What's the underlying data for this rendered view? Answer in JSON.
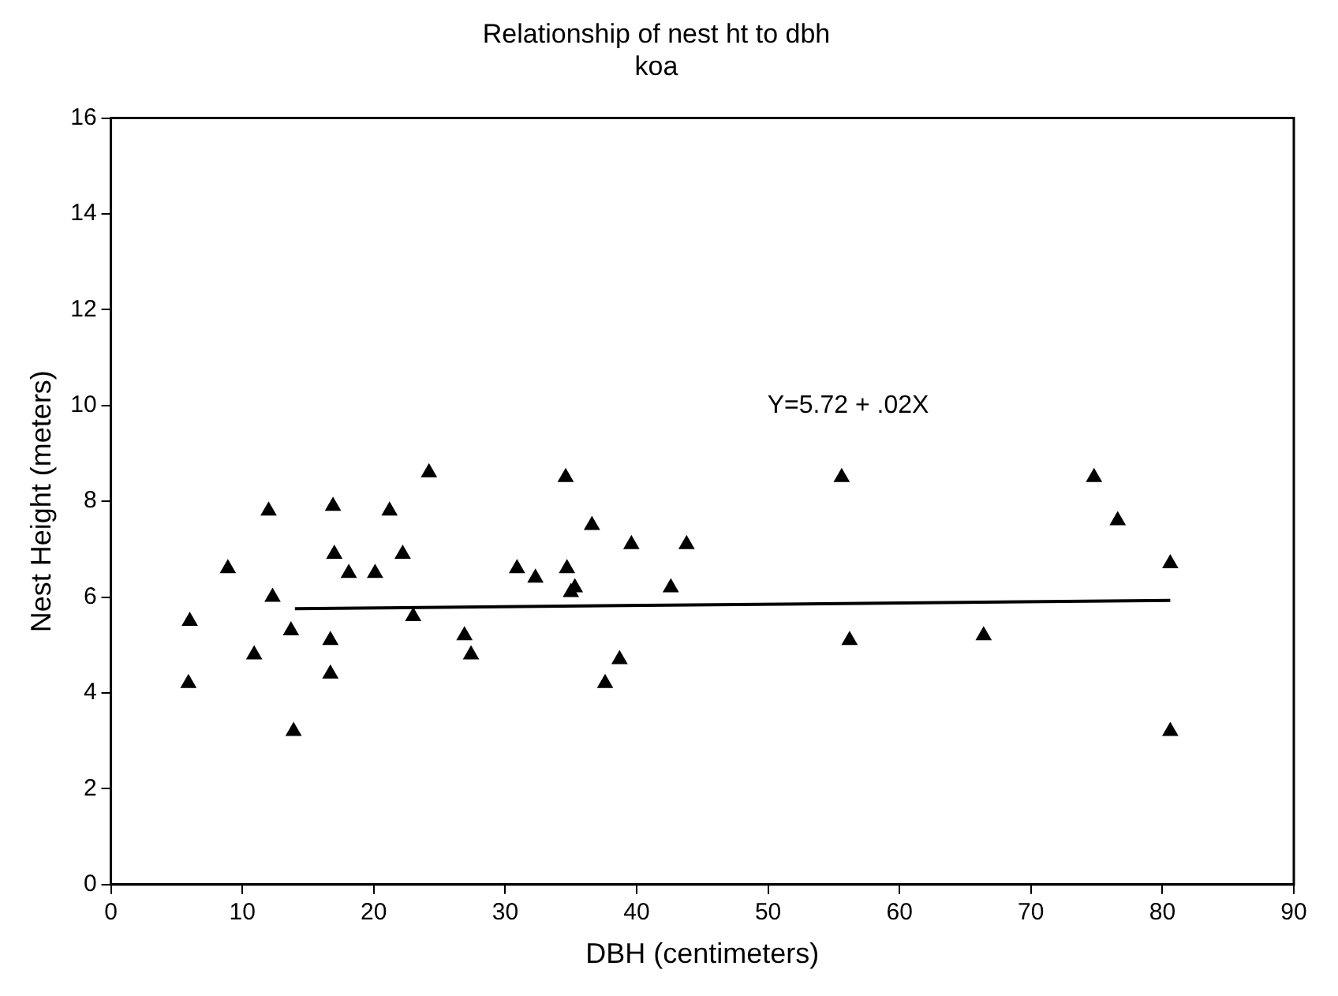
{
  "chart_data": {
    "type": "scatter",
    "title": "Relationship of nest ht to dbh",
    "subtitle": "koa",
    "xlabel": "DBH (centimeters)",
    "ylabel": "Nest Height (meters)",
    "xlim": [
      0,
      90
    ],
    "xticks": [
      0,
      10,
      20,
      30,
      40,
      50,
      60,
      70,
      80,
      90
    ],
    "ylim": [
      0,
      16
    ],
    "yticks": [
      0,
      2,
      4,
      6,
      8,
      10,
      12,
      14,
      16
    ],
    "grid": false,
    "legend": false,
    "annotations": [
      "Y=5.72 + .02X"
    ],
    "series": [
      {
        "color": "#000000",
        "marker": "triangle",
        "x": [
          5.9,
          6.0,
          8.9,
          10.9,
          12.0,
          12.3,
          13.7,
          13.9,
          16.9,
          16.7,
          17.0,
          16.7,
          18.1,
          20.1,
          21.2,
          22.2,
          23.0,
          24.2,
          26.9,
          27.4,
          30.9,
          32.3,
          34.6,
          34.7,
          35.0,
          35.3,
          36.6,
          37.6,
          38.7,
          39.6,
          42.6,
          43.8,
          55.6,
          56.2,
          66.4,
          74.8,
          76.6,
          80.6,
          80.6
        ],
        "values": [
          4.2,
          5.5,
          6.6,
          4.8,
          7.8,
          6.0,
          5.3,
          3.2,
          7.9,
          4.4,
          6.9,
          5.1,
          6.5,
          6.5,
          7.8,
          6.9,
          5.6,
          8.6,
          5.2,
          4.8,
          6.6,
          6.4,
          8.5,
          6.6,
          6.1,
          6.2,
          7.5,
          4.2,
          4.7,
          7.1,
          6.2,
          7.1,
          8.5,
          5.1,
          5.2,
          8.5,
          7.6,
          6.7,
          3.2
        ]
      },
      {
        "type": "line",
        "marker": "none",
        "color": "#000000",
        "x": [
          14,
          80.6
        ],
        "values": [
          5.76,
          5.93
        ]
      }
    ]
  }
}
